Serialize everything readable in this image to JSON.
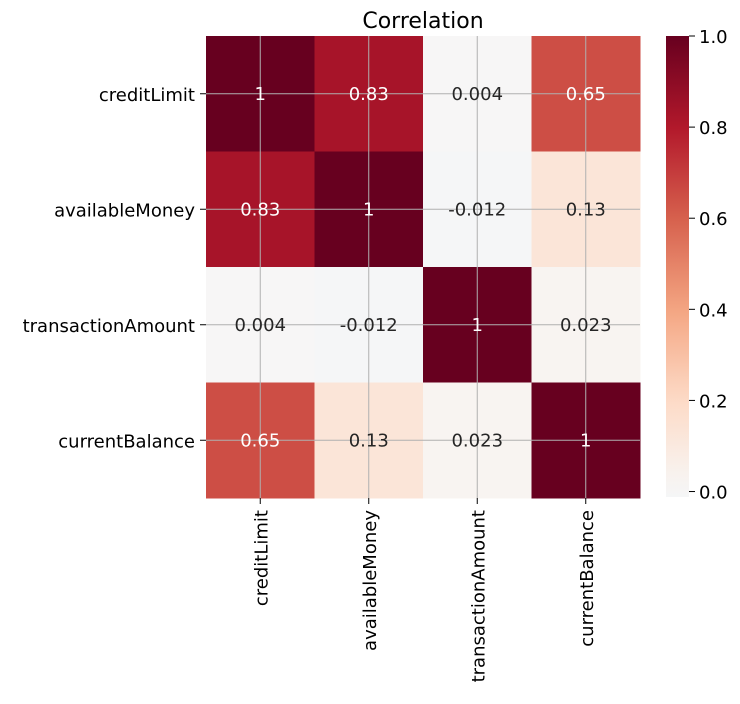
{
  "chart_data": {
    "type": "heatmap",
    "title": "Correlation",
    "xlabel": "",
    "ylabel": "",
    "rows": [
      "creditLimit",
      "availableMoney",
      "transactionAmount",
      "currentBalance"
    ],
    "columns": [
      "creditLimit",
      "availableMoney",
      "transactionAmount",
      "currentBalance"
    ],
    "values": [
      [
        1,
        0.83,
        0.004,
        0.65
      ],
      [
        0.83,
        1,
        -0.012,
        0.13
      ],
      [
        0.004,
        -0.012,
        1,
        0.023
      ],
      [
        0.65,
        0.13,
        0.023,
        1
      ]
    ],
    "annotations": [
      [
        "1",
        "0.83",
        "0.004",
        "0.65"
      ],
      [
        "0.83",
        "1",
        "-0.012",
        "0.13"
      ],
      [
        "0.004",
        "-0.012",
        "1",
        "0.023"
      ],
      [
        "0.65",
        "0.13",
        "0.023",
        "1"
      ]
    ],
    "colorbar": {
      "range": [
        -0.012,
        1.0
      ],
      "ticks": [
        "0.0",
        "0.2",
        "0.4",
        "0.6",
        "0.8",
        "1.0"
      ],
      "colormap": "RdBu_r"
    },
    "grid": true
  }
}
